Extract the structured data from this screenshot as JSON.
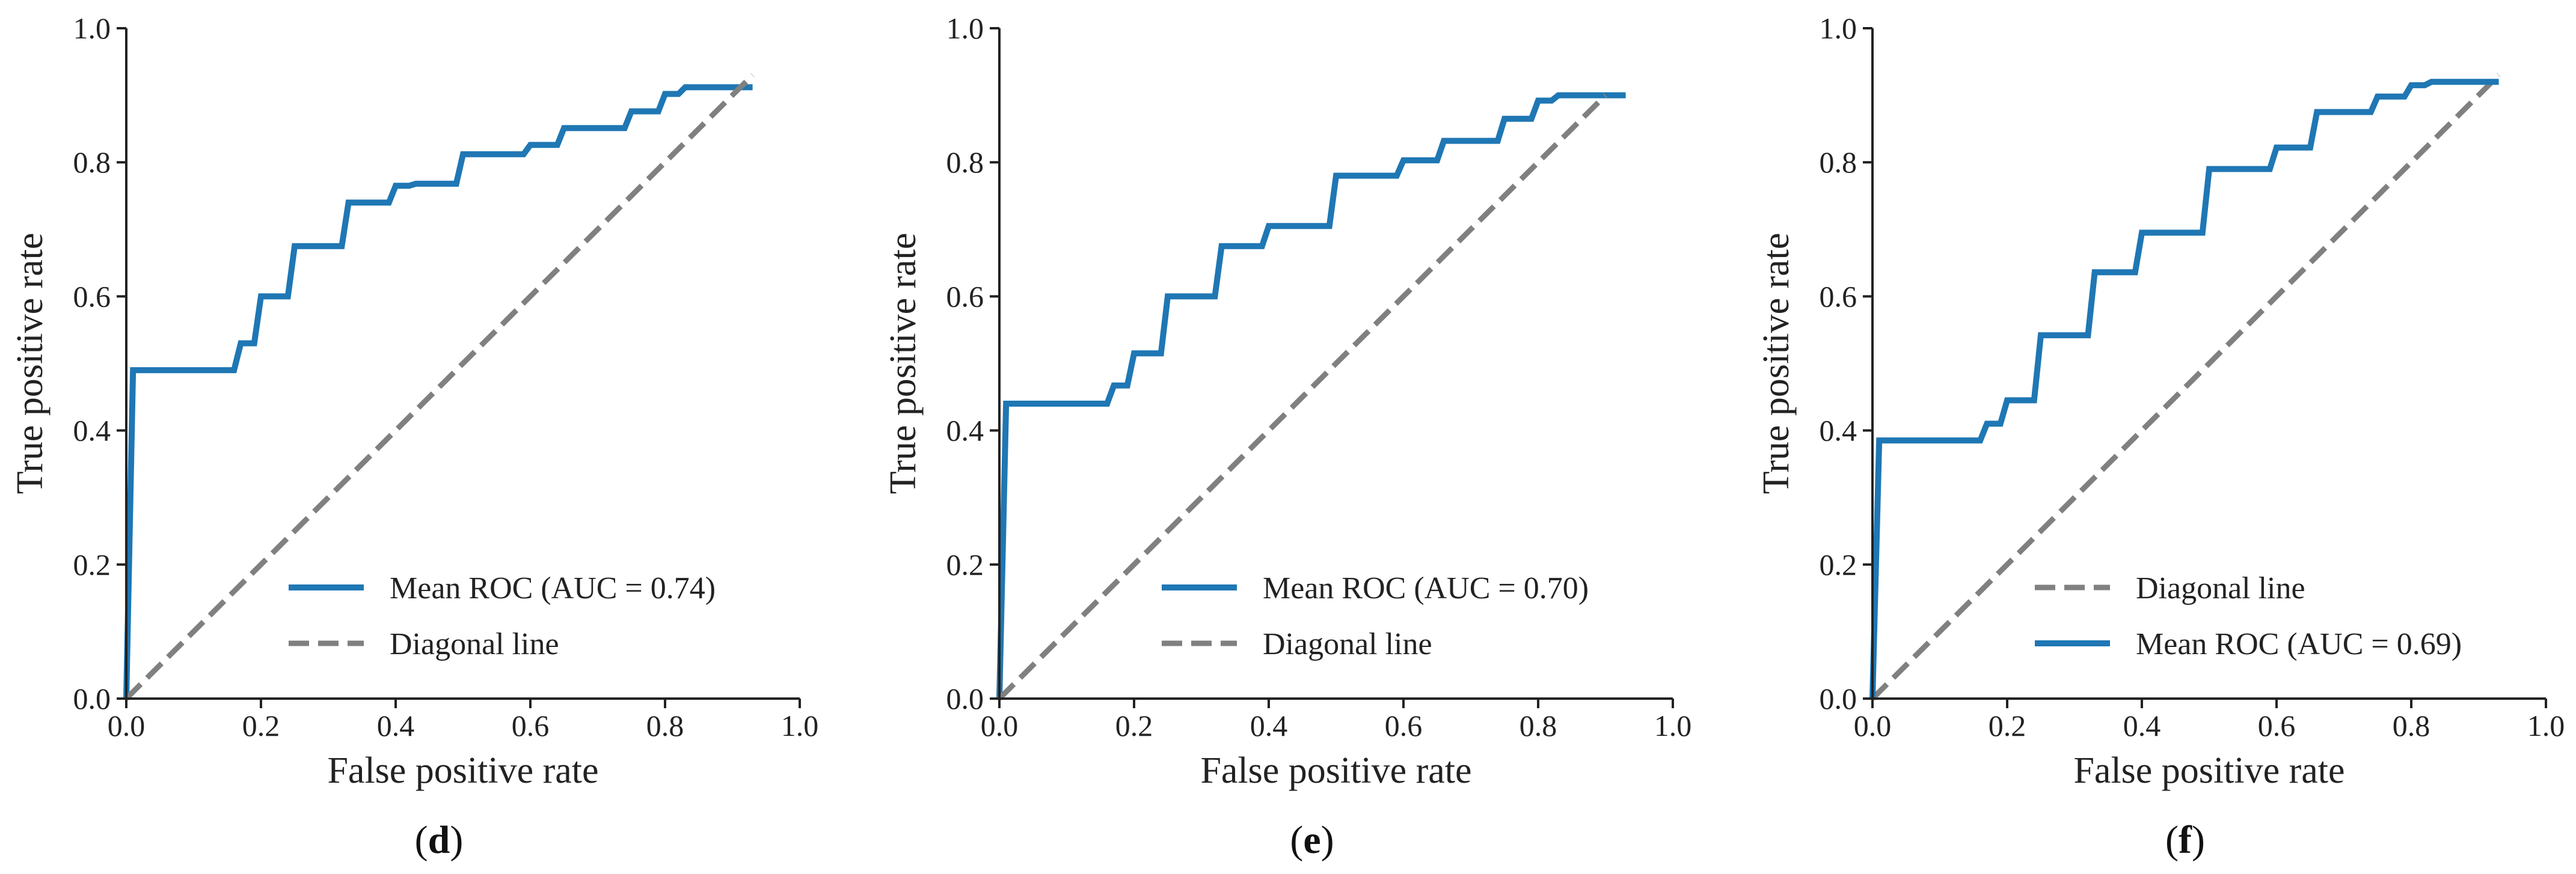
{
  "colors": {
    "roc": "#1f77b4",
    "diagonal": "#808080",
    "axis": "#222222"
  },
  "chart_data": [
    {
      "type": "line",
      "panel": "d",
      "caption": {
        "open": "(",
        "letter": "d",
        "close": ")"
      },
      "xlabel": "False positive rate",
      "ylabel": "True positive rate",
      "xlim": [
        0,
        1.0
      ],
      "ylim": [
        0,
        1.0
      ],
      "xticks": [
        "0.0",
        "0.2",
        "0.4",
        "0.6",
        "0.8",
        "1.0"
      ],
      "yticks": [
        "0.0",
        "0.2",
        "0.4",
        "0.6",
        "0.8",
        "1.0"
      ],
      "legend_position": "lower-right",
      "series": [
        {
          "name": "Mean ROC (AUC = 0.74)",
          "style": "solid",
          "x": [
            0,
            0.01,
            0.14,
            0.16,
            0.17,
            0.19,
            0.2,
            0.24,
            0.25,
            0.32,
            0.33,
            0.39,
            0.4,
            0.42,
            0.43,
            0.49,
            0.5,
            0.59,
            0.6,
            0.64,
            0.65,
            0.74,
            0.75,
            0.79,
            0.8,
            0.82,
            0.83,
            0.93
          ],
          "y": [
            0,
            0.49,
            0.49,
            0.49,
            0.53,
            0.53,
            0.6,
            0.6,
            0.675,
            0.675,
            0.74,
            0.74,
            0.765,
            0.765,
            0.768,
            0.768,
            0.812,
            0.812,
            0.826,
            0.826,
            0.851,
            0.851,
            0.876,
            0.876,
            0.902,
            0.902,
            0.912,
            0.912
          ]
        },
        {
          "name": "Diagonal line",
          "style": "dashed",
          "x": [
            0,
            0.93
          ],
          "y": [
            0,
            0.93
          ]
        }
      ]
    },
    {
      "type": "line",
      "panel": "e",
      "caption": {
        "open": "(",
        "letter": "e",
        "close": ")"
      },
      "xlabel": "False positive rate",
      "ylabel": "True positive rate",
      "xlim": [
        0,
        1.0
      ],
      "ylim": [
        0,
        1.0
      ],
      "xticks": [
        "0.0",
        "0.2",
        "0.4",
        "0.6",
        "0.8",
        "1.0"
      ],
      "yticks": [
        "0.0",
        "0.2",
        "0.4",
        "0.6",
        "0.8",
        "1.0"
      ],
      "legend_position": "lower-right",
      "series": [
        {
          "name": "Mean ROC (AUC = 0.70)",
          "style": "solid",
          "x": [
            0,
            0.01,
            0.16,
            0.17,
            0.19,
            0.2,
            0.24,
            0.25,
            0.32,
            0.33,
            0.39,
            0.4,
            0.49,
            0.5,
            0.59,
            0.6,
            0.65,
            0.66,
            0.74,
            0.75,
            0.79,
            0.8,
            0.82,
            0.83,
            0.93
          ],
          "y": [
            0,
            0.44,
            0.44,
            0.467,
            0.467,
            0.515,
            0.515,
            0.6,
            0.6,
            0.675,
            0.675,
            0.705,
            0.705,
            0.78,
            0.78,
            0.803,
            0.803,
            0.832,
            0.832,
            0.865,
            0.865,
            0.892,
            0.892,
            0.9,
            0.9
          ]
        },
        {
          "name": "Diagonal line",
          "style": "dashed",
          "x": [
            0,
            0.9
          ],
          "y": [
            0,
            0.9
          ]
        }
      ]
    },
    {
      "type": "line",
      "panel": "f",
      "caption": {
        "open": "(",
        "letter": "f",
        "close": ")"
      },
      "xlabel": "False positive rate",
      "ylabel": "True positive rate",
      "xlim": [
        0,
        1.0
      ],
      "ylim": [
        0,
        1.0
      ],
      "xticks": [
        "0.0",
        "0.2",
        "0.4",
        "0.6",
        "0.8",
        "1.0"
      ],
      "yticks": [
        "0.0",
        "0.2",
        "0.4",
        "0.6",
        "0.8",
        "1.0"
      ],
      "legend_position": "lower-right",
      "series": [
        {
          "name": "Diagonal line",
          "style": "dashed",
          "x": [
            0,
            0.93
          ],
          "y": [
            0,
            0.93
          ]
        },
        {
          "name": "Mean ROC (AUC = 0.69)",
          "style": "solid",
          "x": [
            0,
            0.01,
            0.16,
            0.17,
            0.19,
            0.2,
            0.24,
            0.25,
            0.32,
            0.33,
            0.39,
            0.4,
            0.49,
            0.5,
            0.59,
            0.6,
            0.65,
            0.66,
            0.74,
            0.75,
            0.79,
            0.8,
            0.82,
            0.83,
            0.93
          ],
          "y": [
            0,
            0.385,
            0.385,
            0.41,
            0.41,
            0.445,
            0.445,
            0.542,
            0.542,
            0.636,
            0.636,
            0.695,
            0.695,
            0.79,
            0.79,
            0.822,
            0.822,
            0.875,
            0.875,
            0.898,
            0.898,
            0.915,
            0.915,
            0.92,
            0.92
          ]
        }
      ]
    }
  ]
}
